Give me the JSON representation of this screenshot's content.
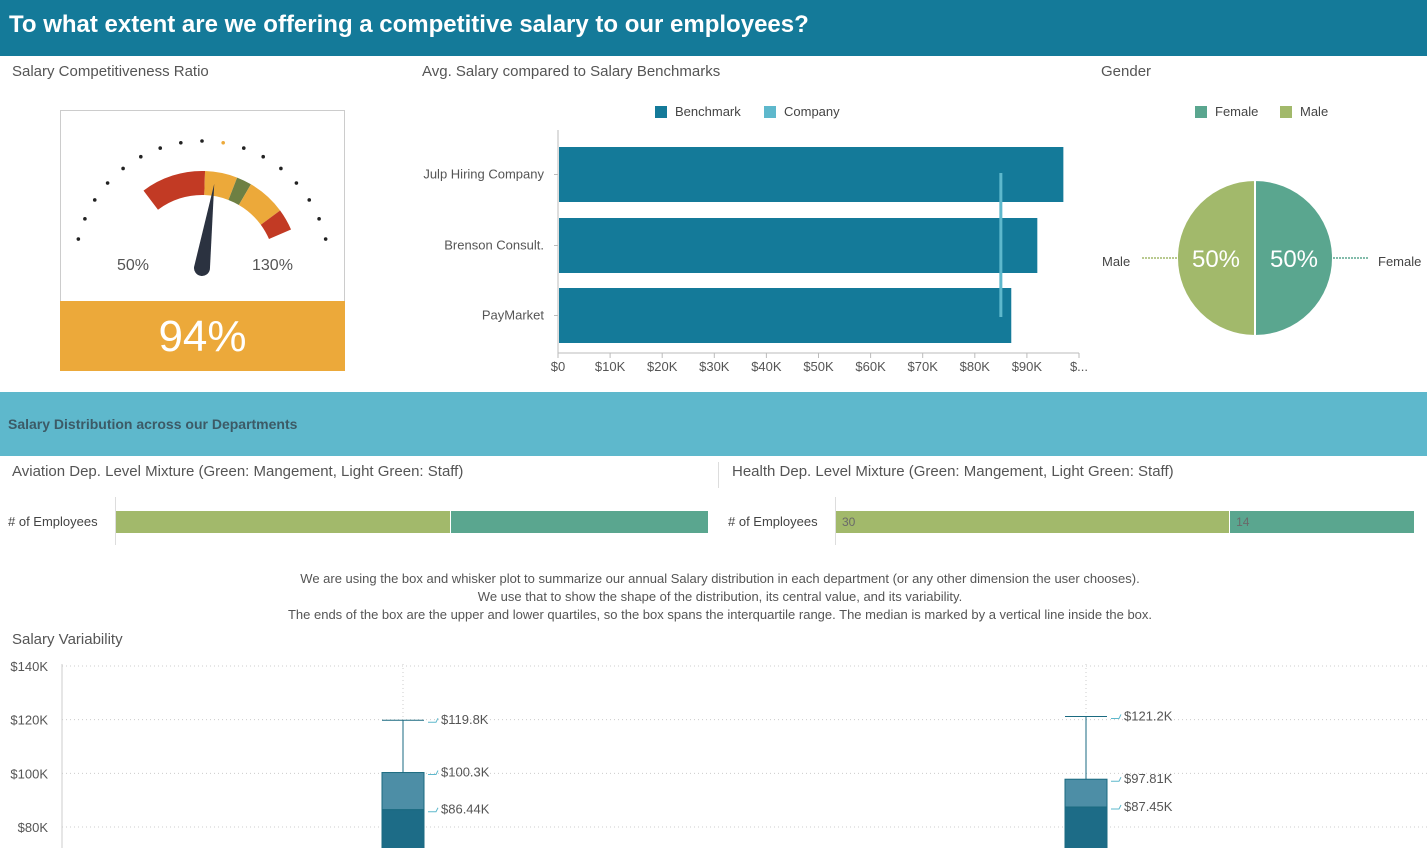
{
  "header": {
    "title": "To what extent are we offering a competitive salary to our employees?"
  },
  "colors": {
    "header_bg": "#147a99",
    "benchmark": "#147a99",
    "company": "#5eb8cc",
    "female": "#5aa68f",
    "male": "#a2b96b",
    "gauge_value_bg": "#eca93a",
    "section_band": "#5eb8cc"
  },
  "gauge": {
    "title": "Salary Competitiveness Ratio",
    "min_label": "50%",
    "max_label": "130%",
    "value_label": "94%",
    "value": 94,
    "needle_icon": "gauge-needle-icon"
  },
  "chart_data": [
    {
      "type": "gauge",
      "title": "Salary Competitiveness Ratio",
      "range": [
        50,
        130
      ],
      "value": 94,
      "bands": [
        {
          "from": 20,
          "to": 50,
          "color": "#c23a24"
        },
        {
          "from": 50,
          "to": 65,
          "color": "#eca93a"
        },
        {
          "from": 65,
          "to": 72,
          "color": "#6e8043"
        },
        {
          "from": 72,
          "to": 90,
          "color": "#eca93a"
        },
        {
          "from": 90,
          "to": 100,
          "color": "#c23a24"
        }
      ]
    },
    {
      "type": "bar",
      "orientation": "horizontal",
      "title": "Avg. Salary compared to Salary Benchmarks",
      "categories": [
        "Julp Hiring Company",
        "Brenson Consult.",
        "PayMarket"
      ],
      "series": [
        {
          "name": "Benchmark",
          "values": [
            97000,
            92000,
            87000
          ]
        },
        {
          "name": "Company",
          "values": [
            85000,
            85000,
            85000
          ]
        }
      ],
      "xlim": [
        0,
        100000
      ],
      "x_ticks": [
        "$0",
        "$10K",
        "$20K",
        "$30K",
        "$40K",
        "$50K",
        "$60K",
        "$70K",
        "$80K",
        "$90K",
        "$..."
      ],
      "legend": [
        "Benchmark",
        "Company"
      ]
    },
    {
      "type": "pie",
      "title": "Gender",
      "slices": [
        {
          "name": "Female",
          "value": 50,
          "label": "50%"
        },
        {
          "name": "Male",
          "value": 50,
          "label": "50%"
        }
      ],
      "legend": [
        "Female",
        "Male"
      ]
    },
    {
      "type": "bar",
      "stacked": true,
      "title": "Aviation Dep. Level Mixture (Green: Mangement, Light Green: Staff)",
      "row_label": "# of Employees",
      "series": [
        {
          "name": "Staff",
          "value": 34
        },
        {
          "name": "Management",
          "value": 26
        }
      ]
    },
    {
      "type": "bar",
      "stacked": true,
      "title": "Health Dep. Level Mixture (Green: Mangement, Light Green: Staff)",
      "row_label": "# of Employees",
      "series": [
        {
          "name": "Staff",
          "value": 30,
          "label": "30"
        },
        {
          "name": "Management",
          "value": 14,
          "label": "14"
        }
      ]
    },
    {
      "type": "box",
      "title": "Salary Variability",
      "ylim": [
        73000,
        140000
      ],
      "y_ticks": [
        {
          "value": 140000,
          "label": "$140K"
        },
        {
          "value": 120000,
          "label": "$120K"
        },
        {
          "value": 100000,
          "label": "$100K"
        },
        {
          "value": 80000,
          "label": "$80K"
        }
      ],
      "boxes": [
        {
          "whisker_high": 119800,
          "whisker_high_label": "$119.8K",
          "q3": 100300,
          "q3_label": "$100.3K",
          "median": 86440,
          "median_label": "$86.44K"
        },
        {
          "whisker_high": 121200,
          "whisker_high_label": "$121.2K",
          "q3": 97810,
          "q3_label": "$97.81K",
          "median": 87450,
          "median_label": "$87.45K"
        }
      ]
    }
  ],
  "bench": {
    "title": "Avg. Salary compared to Salary Benchmarks",
    "legend": {
      "benchmark": "Benchmark",
      "company": "Company"
    }
  },
  "gender": {
    "title": "Gender",
    "legend": {
      "female": "Female",
      "male": "Male"
    },
    "callout_male": "Male",
    "callout_female": "Female"
  },
  "section": {
    "title": "Salary Distribution across our Departments"
  },
  "aviation": {
    "title": "Aviation Dep. Level Mixture (Green: Mangement, Light Green: Staff)",
    "row_label": "# of Employees"
  },
  "health": {
    "title": "Health Dep. Level Mixture (Green: Mangement, Light Green: Staff)",
    "row_label": "# of Employees",
    "staff_label": "30",
    "mgmt_label": "14"
  },
  "description": {
    "line1": "We are using the box and whisker plot to summarize our annual Salary distribution in each department (or any other dimension the user chooses).",
    "line2": "We use that to show the shape of the distribution, its central value, and its variability.",
    "line3": "The ends of the box are the upper and lower quartiles, so the box spans the interquartile range. The median is marked by a vertical line inside the box."
  },
  "variability": {
    "title": "Salary Variability"
  }
}
